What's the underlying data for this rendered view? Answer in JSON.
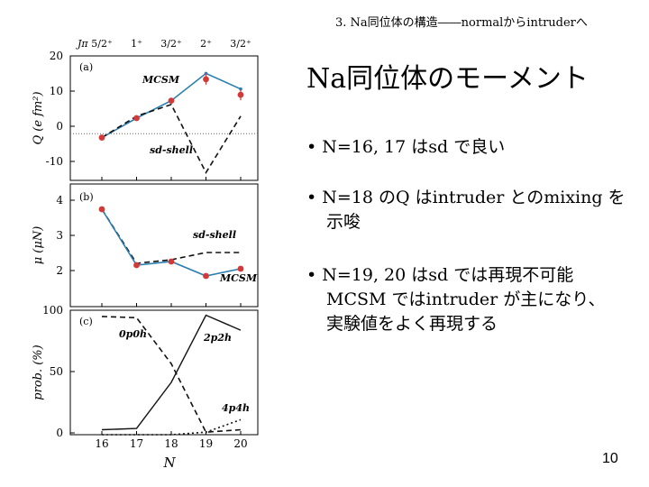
{
  "header": "3. Na同位体の構造――normalからintruderへ",
  "slide": {
    "title": "Na同位体のモーメント",
    "bullets": [
      [
        "• N=16, 17 はsd で良い"
      ],
      [
        "• N=18 のQ はintruder とのmixing を",
        "示唆"
      ],
      [
        "• N=19, 20 はsd では再現不可能",
        "MCSM ではintruder が主になり、",
        "実験値をよく再現する"
      ]
    ],
    "page_number": "10"
  },
  "chart_data": [
    {
      "type": "line",
      "panel": "(a)",
      "ylabel": "Q (e fm²)",
      "x": [
        16,
        17,
        18,
        19,
        20
      ],
      "top_labels": [
        "5/2⁺",
        "1⁺",
        "3/2⁺",
        "2⁺",
        "3/2⁺"
      ],
      "top_axis_label": "Jπ",
      "ylim": [
        -12,
        20
      ],
      "yticks": [
        "20",
        "10",
        "0",
        "-10"
      ],
      "series": [
        {
          "name": "MCSM",
          "style": "solid-blue",
          "values": [
            -1,
            4,
            8.5,
            15.5,
            11.5
          ]
        },
        {
          "name": "sd-shell",
          "style": "dashed",
          "values": [
            -1,
            4.5,
            7.5,
            -10,
            4.5
          ]
        },
        {
          "name": "exp",
          "style": "points-red",
          "values": [
            -1,
            4,
            8.5,
            14,
            10
          ]
        }
      ]
    },
    {
      "type": "line",
      "panel": "(b)",
      "ylabel": "μ (μN)",
      "x": [
        16,
        17,
        18,
        19,
        20
      ],
      "ylim": [
        1.2,
        4.6
      ],
      "yticks": [
        "4",
        "3",
        "2"
      ],
      "series": [
        {
          "name": "sd-shell",
          "style": "dashed",
          "values": [
            3.9,
            2.4,
            2.5,
            2.7,
            2.7
          ]
        },
        {
          "name": "MCSM",
          "style": "solid-blue",
          "values": [
            3.9,
            2.35,
            2.45,
            2.05,
            2.25
          ]
        },
        {
          "name": "exp",
          "style": "points-red",
          "values": [
            3.9,
            2.35,
            2.45,
            2.05,
            2.25
          ]
        }
      ]
    },
    {
      "type": "line",
      "panel": "(c)",
      "ylabel": "prob. (%)",
      "xlabel": "N",
      "x": [
        16,
        17,
        18,
        19,
        20
      ],
      "xticks": [
        "16",
        "17",
        "18",
        "19",
        "20"
      ],
      "ylim": [
        0,
        100
      ],
      "yticks": [
        "100",
        "50",
        "0"
      ],
      "series": [
        {
          "name": "0p0h",
          "style": "dashed",
          "values": [
            95,
            94,
            57,
            2,
            4
          ]
        },
        {
          "name": "2p2h",
          "style": "solid",
          "values": [
            4,
            5,
            42,
            96,
            84
          ]
        },
        {
          "name": "4p4h",
          "style": "dotted",
          "values": [
            0,
            0,
            0,
            2,
            12
          ]
        }
      ]
    }
  ]
}
